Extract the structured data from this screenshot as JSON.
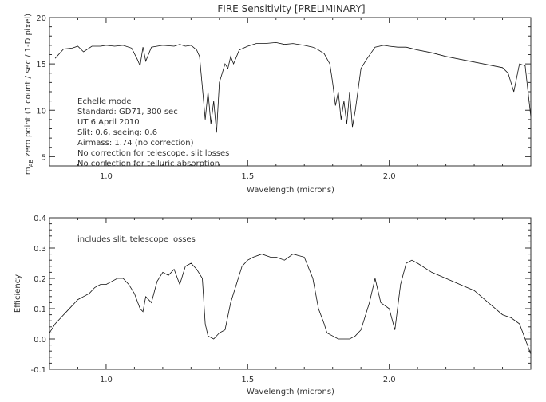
{
  "chart_data": [
    {
      "type": "line",
      "title": "FIRE Sensitivity [PRELIMINARY]",
      "xlabel": "Wavelength (microns)",
      "ylabel_main": "m",
      "ylabel_sub": "AB",
      "ylabel_rest": " zero point (1 count / sec / 1-D pixel)",
      "xlim": [
        0.8,
        2.5
      ],
      "ylim": [
        4,
        20
      ],
      "xticks": [
        1.0,
        1.5,
        2.0
      ],
      "xtick_labels": [
        "1.0",
        "1.5",
        "2.0"
      ],
      "yticks": [
        5,
        10,
        15,
        20
      ],
      "ytick_labels": [
        "5",
        "10",
        "15",
        "20"
      ],
      "annotations": [
        "Echelle mode",
        "Standard: GD71, 300 sec",
        "UT 6 April 2010",
        "Slit: 0.6, seeing: 0.6",
        "Airmass: 1.74 (no correction)",
        "No correction for telescope, slit losses",
        "No correction for telluric absorption"
      ],
      "series": [
        {
          "x": [
            0.82,
            0.85,
            0.88,
            0.9,
            0.92,
            0.95,
            0.98,
            1.0,
            1.03,
            1.06,
            1.09,
            1.11,
            1.12,
            1.13,
            1.14,
            1.16,
            1.18,
            1.2,
            1.24,
            1.26,
            1.28,
            1.3,
            1.32,
            1.33,
            1.34,
            1.35,
            1.36,
            1.37,
            1.38,
            1.39,
            1.4,
            1.41,
            1.42,
            1.43,
            1.44,
            1.45,
            1.47,
            1.5,
            1.53,
            1.56,
            1.6,
            1.63,
            1.66,
            1.7,
            1.73,
            1.75,
            1.77,
            1.79,
            1.8,
            1.81,
            1.82,
            1.83,
            1.84,
            1.85,
            1.86,
            1.87,
            1.88,
            1.9,
            1.92,
            1.95,
            1.98,
            2.0,
            2.03,
            2.06,
            2.1,
            2.15,
            2.2,
            2.25,
            2.3,
            2.35,
            2.4,
            2.42,
            2.44,
            2.46,
            2.48,
            2.5
          ],
          "y": [
            15.6,
            16.6,
            16.7,
            16.9,
            16.3,
            16.9,
            16.9,
            17.0,
            16.9,
            17.0,
            16.7,
            15.5,
            14.8,
            16.8,
            15.3,
            16.8,
            16.9,
            17.0,
            16.9,
            17.1,
            16.9,
            17.0,
            16.5,
            15.8,
            12.5,
            9.0,
            12.0,
            8.5,
            11.0,
            7.6,
            13.0,
            14.0,
            15.0,
            14.5,
            15.8,
            15.0,
            16.5,
            16.9,
            17.2,
            17.2,
            17.3,
            17.1,
            17.2,
            17.0,
            16.8,
            16.5,
            16.1,
            15.0,
            13.0,
            10.5,
            12.0,
            9.0,
            11.0,
            8.5,
            12.0,
            8.2,
            10.0,
            14.5,
            15.5,
            16.8,
            17.0,
            16.9,
            16.8,
            16.8,
            16.5,
            16.2,
            15.8,
            15.5,
            15.2,
            14.9,
            14.6,
            14.0,
            12.0,
            15.0,
            14.8,
            9.3
          ]
        }
      ]
    },
    {
      "type": "line",
      "title": "",
      "xlabel": "Wavelength (microns)",
      "ylabel": "Efficiency",
      "xlim": [
        0.8,
        2.5
      ],
      "ylim": [
        -0.1,
        0.4
      ],
      "xticks": [
        1.0,
        1.5,
        2.0
      ],
      "xtick_labels": [
        "1.0",
        "1.5",
        "2.0"
      ],
      "yticks": [
        -0.1,
        0.0,
        0.1,
        0.2,
        0.3,
        0.4
      ],
      "ytick_labels": [
        "-0.1",
        "0.0",
        "0.1",
        "0.2",
        "0.3",
        "0.4"
      ],
      "annotations": [
        "includes slit, telescope losses"
      ],
      "series": [
        {
          "x": [
            0.8,
            0.82,
            0.84,
            0.86,
            0.88,
            0.9,
            0.92,
            0.94,
            0.96,
            0.98,
            1.0,
            1.02,
            1.04,
            1.06,
            1.08,
            1.1,
            1.12,
            1.13,
            1.14,
            1.16,
            1.18,
            1.2,
            1.22,
            1.24,
            1.26,
            1.28,
            1.3,
            1.32,
            1.34,
            1.35,
            1.36,
            1.38,
            1.4,
            1.42,
            1.44,
            1.46,
            1.48,
            1.5,
            1.52,
            1.55,
            1.58,
            1.6,
            1.63,
            1.66,
            1.7,
            1.73,
            1.75,
            1.77,
            1.78,
            1.8,
            1.82,
            1.84,
            1.86,
            1.88,
            1.9,
            1.93,
            1.95,
            1.97,
            2.0,
            2.02,
            2.04,
            2.06,
            2.08,
            2.1,
            2.15,
            2.2,
            2.25,
            2.3,
            2.35,
            2.4,
            2.43,
            2.46,
            2.5
          ],
          "y": [
            0.02,
            0.05,
            0.07,
            0.09,
            0.11,
            0.13,
            0.14,
            0.15,
            0.17,
            0.18,
            0.18,
            0.19,
            0.2,
            0.2,
            0.18,
            0.15,
            0.1,
            0.09,
            0.14,
            0.12,
            0.19,
            0.22,
            0.21,
            0.23,
            0.18,
            0.24,
            0.25,
            0.23,
            0.2,
            0.05,
            0.01,
            0.0,
            0.02,
            0.03,
            0.12,
            0.18,
            0.24,
            0.26,
            0.27,
            0.28,
            0.27,
            0.27,
            0.26,
            0.28,
            0.27,
            0.2,
            0.1,
            0.05,
            0.02,
            0.01,
            0.0,
            0.0,
            0.0,
            0.01,
            0.03,
            0.12,
            0.2,
            0.12,
            0.1,
            0.03,
            0.18,
            0.25,
            0.26,
            0.25,
            0.22,
            0.2,
            0.18,
            0.16,
            0.12,
            0.08,
            0.07,
            0.05,
            -0.05
          ]
        }
      ]
    }
  ]
}
